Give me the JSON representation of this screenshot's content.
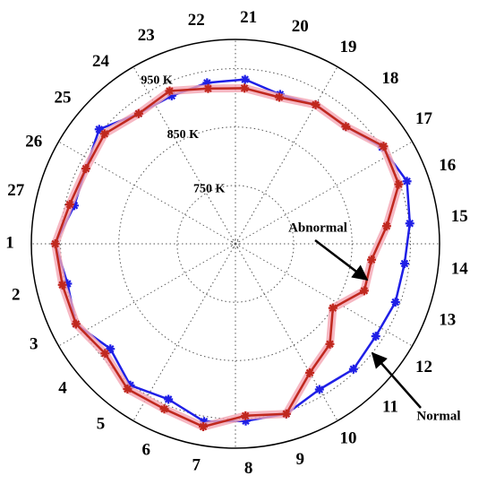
{
  "chart_data": {
    "type": "polar",
    "categories": [
      "1",
      "2",
      "3",
      "4",
      "5",
      "6",
      "7",
      "8",
      "9",
      "10",
      "11",
      "12",
      "13",
      "14",
      "15",
      "16",
      "17",
      "18",
      "19",
      "20",
      "21",
      "22",
      "23",
      "24",
      "25",
      "26",
      "27"
    ],
    "ylim": [
      650,
      1000
    ],
    "yticks": [
      {
        "value": 750,
        "label": "750 K"
      },
      {
        "value": 850,
        "label": "850 K"
      },
      {
        "value": 950,
        "label": "950 K"
      }
    ],
    "grid": true,
    "series": [
      {
        "name": "Normal",
        "color": "#1f1fe6",
        "values": [
          959,
          946,
          956,
          930,
          952,
          940,
          959,
          954,
          954,
          938,
          945,
          938,
          942,
          942,
          951,
          963,
          951,
          926,
          925,
          917,
          932,
          930,
          926,
          928,
          955,
          937,
          934
        ]
      },
      {
        "name": "Abnormal",
        "color": "#c0281e",
        "values": [
          959,
          955,
          956,
          942,
          960,
          958,
          968,
          945,
          954,
          905,
          886,
          850,
          885,
          885,
          911,
          948,
          954,
          926,
          925,
          912,
          917,
          920,
          935,
          928,
          943,
          937,
          942
        ]
      }
    ]
  }
}
